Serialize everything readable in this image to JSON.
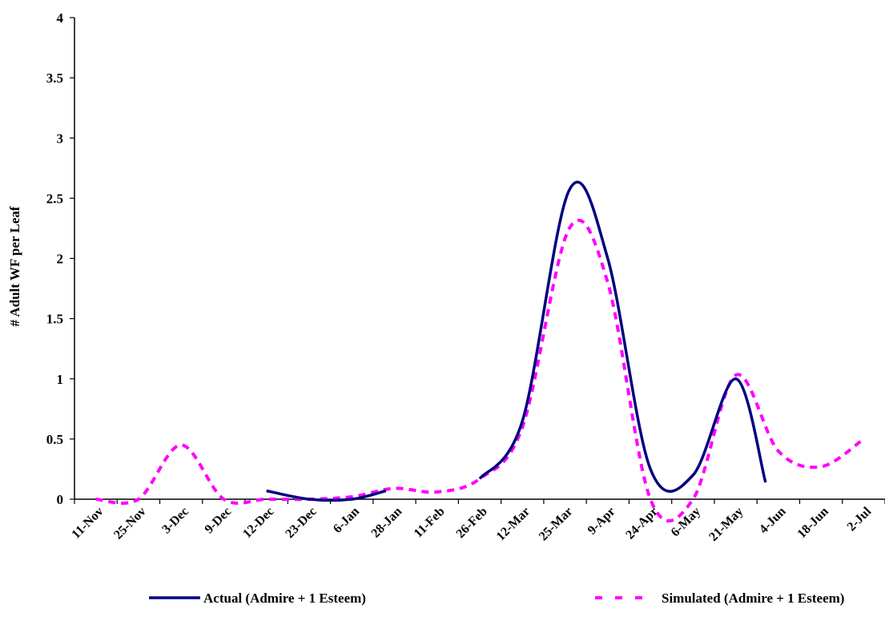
{
  "chart_data": {
    "type": "line",
    "title": "",
    "xlabel": "",
    "ylabel": "# Adult WF per Leaf",
    "ylim": [
      0,
      4
    ],
    "y_ticks": [
      "0",
      "0.5",
      "1",
      "1.5",
      "2",
      "2.5",
      "3",
      "3.5",
      "4"
    ],
    "categories": [
      "11-Nov",
      "25-Nov",
      "3-Dec",
      "9-Dec",
      "12-Dec",
      "23-Dec",
      "6-Jan",
      "28-Jan",
      "11-Feb",
      "26-Feb",
      "12-Mar",
      "25-Mar",
      "9-Apr",
      "24-Apr",
      "6-May",
      "21-May",
      "4-Jun",
      "18-Jun",
      "2-Jul"
    ],
    "grid": false,
    "legend_position": "bottom",
    "series": [
      {
        "name": "Actual (Admire + 1 Esteem)",
        "color": "#000080",
        "style": "solid",
        "segments": [
          [
            [
              4.5,
              0.07
            ],
            [
              5.5,
              0.0
            ],
            [
              6.5,
              0.0
            ],
            [
              7.3,
              0.07
            ]
          ],
          [
            [
              9.5,
              0.17
            ],
            [
              10.5,
              0.65
            ],
            [
              11.6,
              2.57
            ],
            [
              12.5,
              2.0
            ],
            [
              13.5,
              0.25
            ],
            [
              14.5,
              0.2
            ],
            [
              15.5,
              1.0
            ],
            [
              16.2,
              0.14
            ]
          ]
        ]
      },
      {
        "name": "Simulated (Admire + 1 Esteem)",
        "color": "#FF00FF",
        "style": "dashed",
        "segments": [
          [
            [
              0.5,
              0.0
            ],
            [
              1.5,
              0.0
            ],
            [
              2.5,
              0.45
            ],
            [
              3.5,
              0.0
            ],
            [
              4.5,
              0.0
            ],
            [
              5.5,
              0.0
            ],
            [
              6.5,
              0.02
            ],
            [
              7.5,
              0.09
            ],
            [
              8.5,
              0.06
            ],
            [
              9.5,
              0.17
            ],
            [
              10.5,
              0.6
            ],
            [
              11.6,
              2.25
            ],
            [
              12.5,
              1.8
            ],
            [
              13.5,
              0.0
            ],
            [
              14.5,
              0.0
            ],
            [
              15.5,
              1.03
            ],
            [
              16.5,
              0.4
            ],
            [
              17.5,
              0.27
            ],
            [
              18.5,
              0.5
            ]
          ]
        ]
      }
    ]
  }
}
